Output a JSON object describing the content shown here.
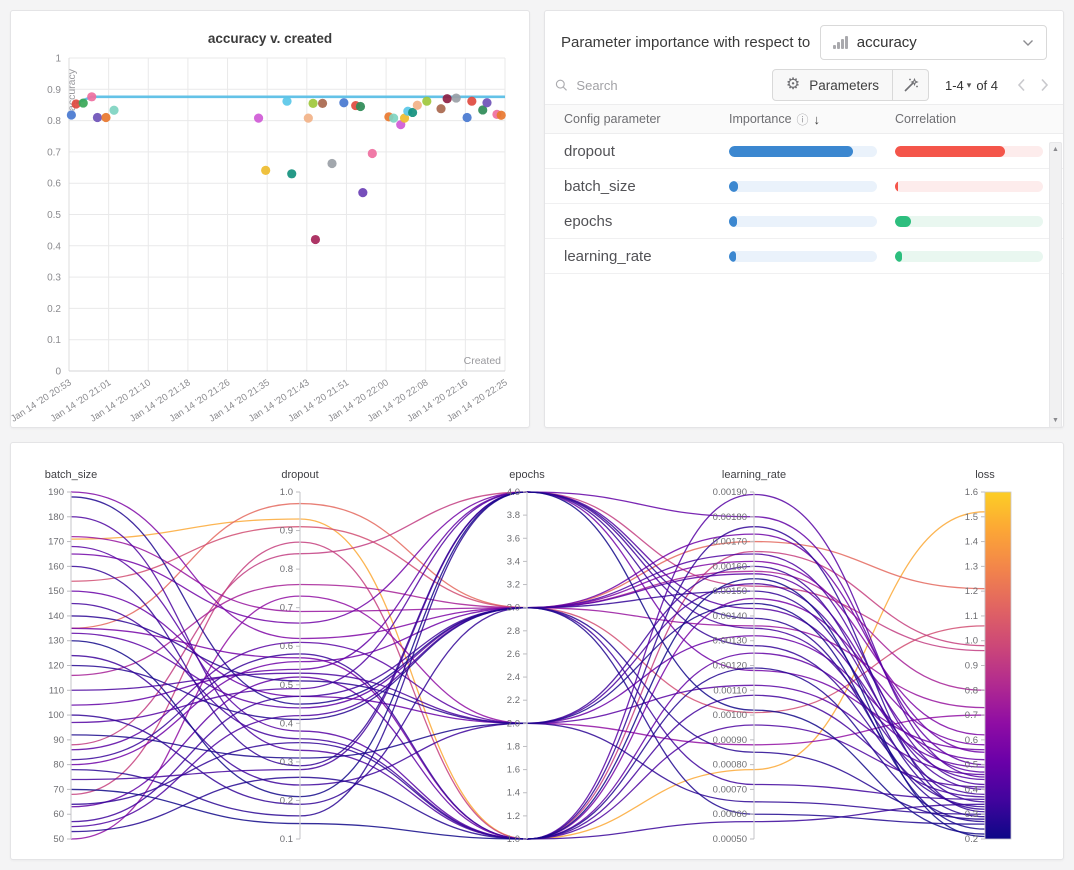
{
  "importance_panel": {
    "title_prefix": "Parameter importance with respect to",
    "metric": "accuracy",
    "search_placeholder": "Search",
    "parameters_button_label": "Parameters",
    "pagination": {
      "range": "1-4",
      "of_label": "of 4"
    },
    "columns": [
      "Config parameter",
      "Importance",
      "Correlation"
    ],
    "rows": [
      {
        "param": "dropout",
        "importance": 0.84,
        "correlation": -0.74
      },
      {
        "param": "batch_size",
        "importance": 0.063,
        "correlation": -0.018
      },
      {
        "param": "epochs",
        "importance": 0.055,
        "correlation": 0.11
      },
      {
        "param": "learning_rate",
        "importance": 0.05,
        "correlation": 0.045
      }
    ],
    "colors": {
      "importance_fill": "#3b87d0",
      "importance_track": "#eaf2fb",
      "corr_neg_fill": "#f4554a",
      "corr_neg_track": "#fdecec",
      "corr_pos_fill": "#2dbe7e",
      "corr_pos_track": "#e9f7f0"
    },
    "glyphs": {
      "gear": "⚙",
      "info": "ⓘ",
      "sort_desc": "↓",
      "caret": "▾",
      "scroll_up": "▲",
      "scroll_down": "▼"
    }
  },
  "chart_data": [
    {
      "type": "scatter",
      "title": "accuracy v. created",
      "xlabel": "Created",
      "ylabel": "accuracy",
      "ylim": [
        0,
        1
      ],
      "y_step": 0.1,
      "x_tick_labels": [
        "Jan 14 '20 20:53",
        "Jan 14 '20 21:01",
        "Jan 14 '20 21:10",
        "Jan 14 '20 21:18",
        "Jan 14 '20 21:26",
        "Jan 14 '20 21:35",
        "Jan 14 '20 21:43",
        "Jan 14 '20 21:51",
        "Jan 14 '20 22:00",
        "Jan 14 '20 22:08",
        "Jan 14 '20 22:16",
        "Jan 14 '20 22:25"
      ],
      "x_range_minutes": [
        0,
        92
      ],
      "baseline": {
        "color": "#5bbfe6",
        "points": [
          [
            1.5,
            0.856
          ],
          [
            4.8,
            0.876
          ],
          [
            92,
            0.876
          ]
        ]
      },
      "points": [
        [
          0.5,
          0.818,
          "#4878d0"
        ],
        [
          1.5,
          0.853,
          "#e04a3f"
        ],
        [
          3.0,
          0.856,
          "#3aa757"
        ],
        [
          4.8,
          0.876,
          "#ef6fa0"
        ],
        [
          6.0,
          0.81,
          "#6f52b8"
        ],
        [
          7.8,
          0.81,
          "#e8772e"
        ],
        [
          9.5,
          0.833,
          "#7fd4c1"
        ],
        [
          40.0,
          0.808,
          "#cf5ad6"
        ],
        [
          41.5,
          0.641,
          "#eebc2e"
        ],
        [
          46.0,
          0.862,
          "#59c7e8"
        ],
        [
          47.0,
          0.63,
          "#13917e"
        ],
        [
          50.5,
          0.808,
          "#f2b288"
        ],
        [
          51.5,
          0.855,
          "#a0c83c"
        ],
        [
          53.5,
          0.855,
          "#a9684e"
        ],
        [
          52.0,
          0.42,
          "#a62458"
        ],
        [
          55.5,
          0.663,
          "#9aa0a6"
        ],
        [
          58.0,
          0.857,
          "#4878d0"
        ],
        [
          60.5,
          0.848,
          "#e04a3f"
        ],
        [
          61.5,
          0.845,
          "#2e8b57"
        ],
        [
          62.0,
          0.57,
          "#6a3fb5"
        ],
        [
          64.0,
          0.695,
          "#ef6fa0"
        ],
        [
          67.5,
          0.812,
          "#e8772e"
        ],
        [
          68.5,
          0.808,
          "#7fd4c1"
        ],
        [
          70.0,
          0.787,
          "#cf5ad6"
        ],
        [
          70.8,
          0.808,
          "#eebc2e"
        ],
        [
          71.5,
          0.83,
          "#59c7e8"
        ],
        [
          72.5,
          0.826,
          "#13917e"
        ],
        [
          73.5,
          0.849,
          "#f2b288"
        ],
        [
          75.5,
          0.862,
          "#a0c83c"
        ],
        [
          78.5,
          0.838,
          "#a9684e"
        ],
        [
          79.8,
          0.87,
          "#8e2043"
        ],
        [
          81.7,
          0.872,
          "#9aa0a6"
        ],
        [
          84.0,
          0.81,
          "#4878d0"
        ],
        [
          85.0,
          0.862,
          "#e04a3f"
        ],
        [
          87.3,
          0.834,
          "#2e8b57"
        ],
        [
          88.2,
          0.857,
          "#6f52b8"
        ],
        [
          90.3,
          0.82,
          "#ef6fa0"
        ],
        [
          91.2,
          0.817,
          "#e8772e"
        ]
      ]
    },
    {
      "type": "parallel-coordinates",
      "color_axis": "loss",
      "axes": [
        {
          "name": "batch_size",
          "min": 50,
          "max": 190,
          "step": 10,
          "decimals": 0
        },
        {
          "name": "dropout",
          "min": 0.1,
          "max": 1.0,
          "step": 0.1,
          "decimals": 1
        },
        {
          "name": "epochs",
          "min": 1.0,
          "max": 4.0,
          "step": 0.2,
          "decimals": 1
        },
        {
          "name": "learning_rate",
          "min": 0.0005,
          "max": 0.0019,
          "step": 0.0001,
          "decimals": 5
        },
        {
          "name": "loss",
          "min": 0.2,
          "max": 1.6,
          "step": 0.1,
          "decimals": 1
        }
      ],
      "colormap": [
        "#0d0887",
        "#41049d",
        "#6a00a8",
        "#8f0da4",
        "#b12a90",
        "#cc4778",
        "#e16462",
        "#f2844b",
        "#fca636",
        "#fcce25"
      ],
      "runs": [
        [
          171,
          0.93,
          1,
          0.00078,
          1.52
        ],
        [
          135,
          0.97,
          3,
          0.0017,
          1.21
        ],
        [
          154,
          0.91,
          3,
          0.00101,
          1.06
        ],
        [
          68,
          0.87,
          1,
          0.00166,
          0.98
        ],
        [
          88,
          0.84,
          4,
          0.00152,
          0.96
        ],
        [
          116,
          0.76,
          3,
          0.00158,
          0.8
        ],
        [
          172,
          0.69,
          3,
          0.00136,
          0.73
        ],
        [
          50,
          0.73,
          2,
          0.00088,
          0.7
        ],
        [
          190,
          0.62,
          3,
          0.00162,
          0.62
        ],
        [
          135,
          0.57,
          1,
          0.00147,
          0.58
        ],
        [
          165,
          0.66,
          4,
          0.00118,
          0.56
        ],
        [
          80,
          0.56,
          3,
          0.00173,
          0.55
        ],
        [
          150,
          0.47,
          2,
          0.00132,
          0.52
        ],
        [
          104,
          0.54,
          4,
          0.0018,
          0.5
        ],
        [
          63,
          0.52,
          1,
          0.00125,
          0.49
        ],
        [
          133,
          0.44,
          3,
          0.00157,
          0.47
        ],
        [
          86,
          0.61,
          2,
          0.00112,
          0.46
        ],
        [
          168,
          0.38,
          1,
          0.00189,
          0.45
        ],
        [
          97,
          0.49,
          4,
          0.00143,
          0.44
        ],
        [
          55,
          0.42,
          3,
          0.00165,
          0.42
        ],
        [
          180,
          0.33,
          1,
          0.00096,
          0.41
        ],
        [
          110,
          0.53,
          2,
          0.00153,
          0.4
        ],
        [
          74,
          0.28,
          4,
          0.00135,
          0.38
        ],
        [
          145,
          0.36,
          1,
          0.00108,
          0.37
        ],
        [
          57,
          0.47,
          3,
          0.00072,
          0.36
        ],
        [
          124,
          0.24,
          2,
          0.0016,
          0.35
        ],
        [
          82,
          0.58,
          1,
          0.00057,
          0.34
        ],
        [
          160,
          0.29,
          4,
          0.00128,
          0.33
        ],
        [
          100,
          0.19,
          3,
          0.0015,
          0.32
        ],
        [
          64,
          0.35,
          1,
          0.00176,
          0.31
        ],
        [
          140,
          0.51,
          2,
          0.00065,
          0.3
        ],
        [
          78,
          0.16,
          4,
          0.00139,
          0.29
        ],
        [
          120,
          0.41,
          3,
          0.00085,
          0.28
        ],
        [
          53,
          0.26,
          1,
          0.00119,
          0.27
        ],
        [
          188,
          0.45,
          3,
          0.0006,
          0.26
        ],
        [
          92,
          0.31,
          2,
          0.00145,
          0.24
        ],
        [
          130,
          0.21,
          4,
          0.00102,
          0.22
        ],
        [
          70,
          0.14,
          1,
          0.00155,
          0.21
        ]
      ]
    }
  ]
}
